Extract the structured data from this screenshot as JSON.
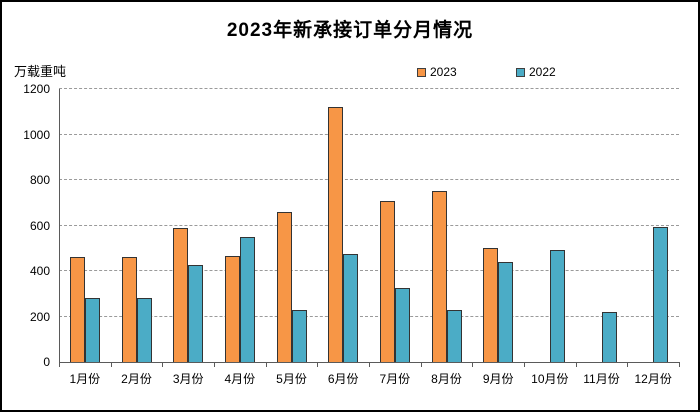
{
  "window": {
    "background": "#ffffff",
    "border_color": "#000000"
  },
  "header": {
    "title": "2023年新承接订单分月情况"
  },
  "axis": {
    "unit_label": "万载重吨"
  },
  "legend": {
    "items": [
      {
        "label": "2023",
        "color": "#F79646"
      },
      {
        "label": "2022",
        "color": "#4BACC6"
      }
    ]
  },
  "chart_data": {
    "type": "bar",
    "title": "2023年新承接订单分月情况",
    "xlabel": "",
    "ylabel": "万载重吨",
    "categories": [
      "1月份",
      "2月份",
      "3月份",
      "4月份",
      "5月份",
      "6月份",
      "7月份",
      "8月份",
      "9月份",
      "10月份",
      "11月份",
      "12月份"
    ],
    "series": [
      {
        "name": "2023",
        "color": "#F79646",
        "border_color": "#333333",
        "values": [
          460,
          463,
          590,
          466,
          659,
          1122,
          708,
          753,
          503,
          null,
          null,
          null
        ]
      },
      {
        "name": "2022",
        "color": "#4BACC6",
        "border_color": "#333333",
        "values": [
          282,
          280,
          427,
          548,
          229,
          474,
          324,
          228,
          440,
          494,
          220,
          593
        ]
      }
    ],
    "ylim": [
      0,
      1200
    ],
    "yticks": [
      0,
      200,
      400,
      600,
      800,
      1000,
      1200
    ],
    "grid": "horizontal-dashed",
    "legend_position": "top-center"
  }
}
